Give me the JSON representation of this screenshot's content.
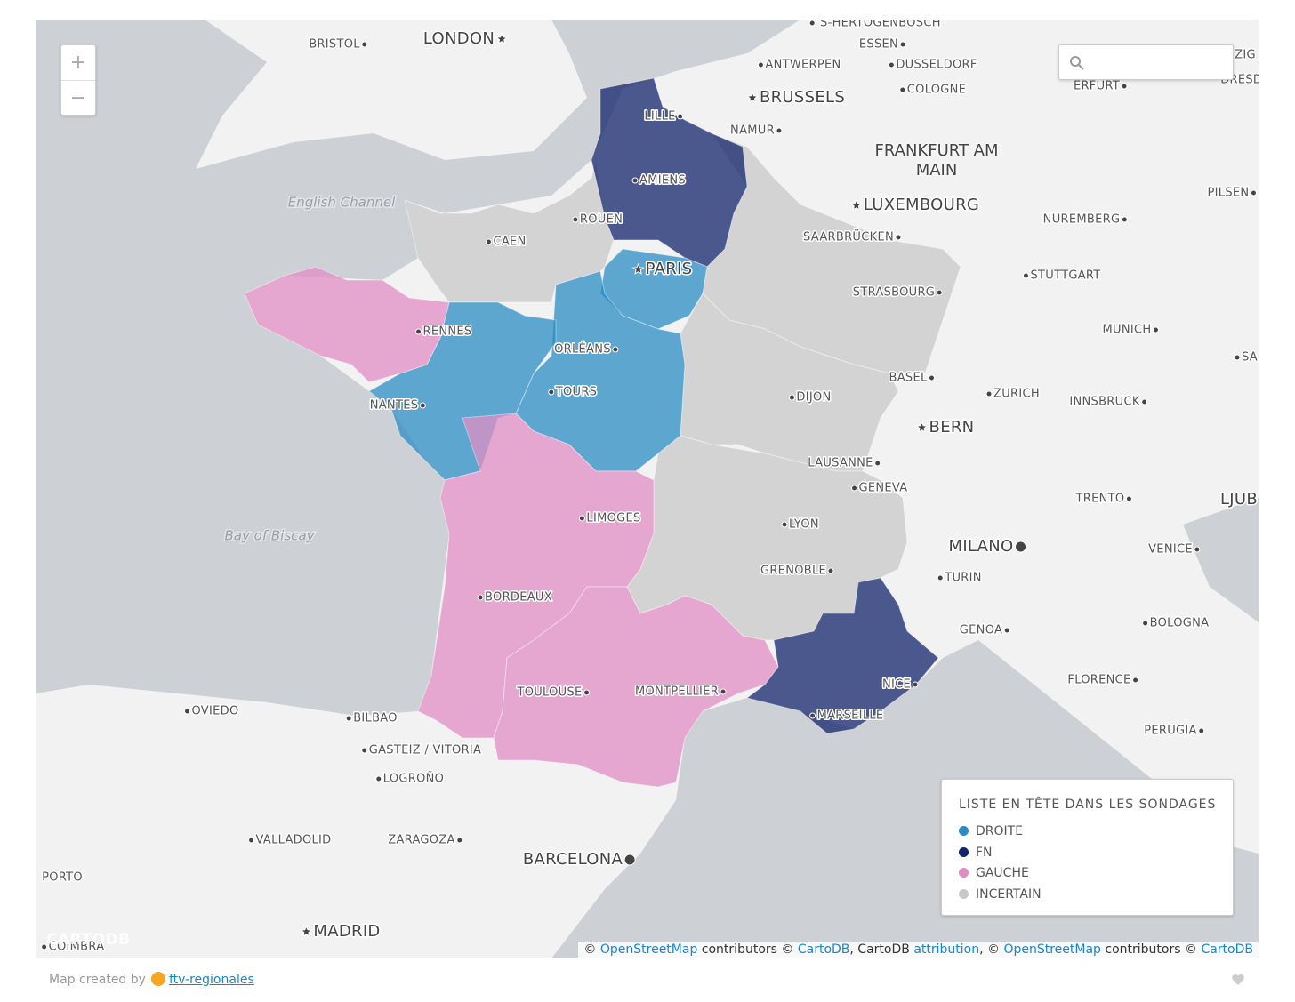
{
  "zoom": {
    "in": "+",
    "out": "−"
  },
  "cities": [
    "'S-HERTOGENBOSCH",
    "LONDON",
    "BRISTOL",
    "ESSEN",
    "ANTWERPEN",
    "DUSSELDORF",
    "ZIG",
    "DRESDE",
    "ERFURT",
    "BRUSSELS",
    "COLOGNE",
    "LILLE",
    "NAMUR",
    "FRANKFURT AM MAIN",
    "AMIENS",
    "LUXEMBOURG",
    "ROUEN",
    "CAEN",
    "PILSEN",
    "NUREMBERG",
    "SAARBRÜCKEN",
    "PARIS",
    "STUTTGART",
    "STRASBOURG",
    "RENNES",
    "MUNICH",
    "ORLÉANS",
    "SA",
    "BASEL",
    "ZURICH",
    "TOURS",
    "NANTES",
    "DIJON",
    "INNSBRUCK",
    "BERN",
    "LAUSANNE",
    "GENEVA",
    "TRENTO",
    "LJUB",
    "LIMOGES",
    "LYON",
    "MILANO",
    "VENICE",
    "GRENOBLE",
    "TURIN",
    "BORDEAUX",
    "GENOA",
    "BOLOGNA",
    "FLORENCE",
    "NICE",
    "TOULOUSE",
    "MONTPELLIER",
    "OVIEDO",
    "MARSEILLE",
    "BILBAO",
    "PERUGIA",
    "GASTEIZ / VITORIA",
    "LOGROÑO",
    "VALLADOLID",
    "ZARAGOZA",
    "BARCELONA",
    "PORTO",
    "MADRID",
    "COIMBRA"
  ],
  "seas": [
    "English Channel",
    "Bay of Biscay"
  ],
  "legend": {
    "title": "LISTE EN TÊTE DANS LES SONDAGES",
    "items": [
      {
        "label": "DROITE",
        "color": "#2b8cc4"
      },
      {
        "label": "FN",
        "color": "#12246b"
      },
      {
        "label": "GAUCHE",
        "color": "#e08dc4"
      },
      {
        "label": "INCERTAIN",
        "color": "#c8c8c8"
      }
    ]
  },
  "watermark": "CARTODB",
  "attribution": [
    {
      "text": "© ",
      "link": false
    },
    {
      "text": "OpenStreetMap",
      "link": true
    },
    {
      "text": " contributors © ",
      "link": false
    },
    {
      "text": "CartoDB",
      "link": true
    },
    {
      "text": ", CartoDB ",
      "link": false
    },
    {
      "text": "attribution",
      "link": true
    },
    {
      "text": ", © ",
      "link": false
    },
    {
      "text": "OpenStreetMap",
      "link": true
    },
    {
      "text": " contributors © ",
      "link": false
    },
    {
      "text": "CartoDB",
      "link": true
    }
  ],
  "footer": {
    "created_by": "Map created by",
    "link": "ftv-regionales"
  }
}
